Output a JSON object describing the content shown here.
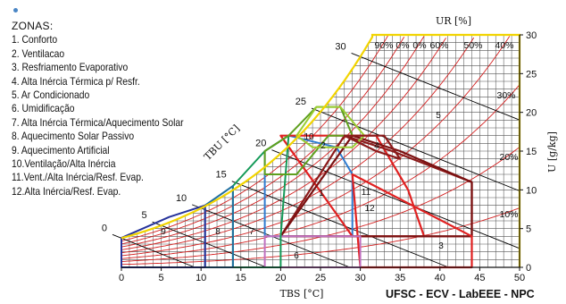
{
  "legend": {
    "heading": "ZONAS:",
    "items": [
      "1. Conforto",
      "2. Ventilacao",
      "3. Resfriamento Evaporativo",
      "4. Alta Inércia Térmica p/ Resfr.",
      "5. Ar Condicionado",
      "6. Umidificação",
      "7. Alta Inércia Térmica/Aquecimento Solar",
      "8. Aquecimento Solar Passivo",
      "9. Aquecimento Artificial",
      "10.Ventilação/Alta Inércia",
      "11.Vent./Alta Inércia/Resf. Evap.",
      "12.Alta Inércia/Resf. Evap."
    ]
  },
  "credit": "UFSC - ECV - LabEEE - NPC",
  "colors": {
    "saturation": "#f2d400",
    "grid": "#555555",
    "rh_curves": "#d42020",
    "comfort": "#2e7bd0",
    "ventilation": "#e02020",
    "evaporative": "#8b1a1a",
    "thermal_mass": "#7a1010",
    "heating_solar_mass": "#149a58",
    "passive_solar": "#1f6fa0",
    "artificial_heating": "#26339b",
    "vent_mass": "#5fa01e",
    "vent_mass_evap": "#9acd32",
    "humidification": "#c070c0",
    "wet_bulb": "#000000"
  },
  "chart_data": {
    "type": "psychrometric",
    "xlabel": "TBS [°C]",
    "ylabel": "U [g/kg]",
    "rh_label": "UR [%]",
    "wb_label": "TBU [°C]",
    "xlim": [
      0,
      50
    ],
    "ylim": [
      0,
      30
    ],
    "x_ticks": [
      "0",
      "5",
      "10",
      "15",
      "20",
      "25",
      "30",
      "35",
      "40",
      "45",
      "50"
    ],
    "y_ticks": [
      "0",
      "5",
      "10",
      "15",
      "20",
      "25",
      "30"
    ],
    "rh_curves": [
      10,
      20,
      30,
      40,
      50,
      60,
      70,
      80,
      90,
      100
    ],
    "rh_labels": [
      "90%",
      "0%",
      "0%",
      "60%",
      "50%",
      "40%",
      "30%",
      "20%",
      "10%"
    ],
    "wet_bulb_labels": [
      "0",
      "5",
      "10",
      "15",
      "20",
      "25",
      "30"
    ],
    "zone_numbers": [
      "1",
      "2",
      "3",
      "4",
      "5",
      "6",
      "7",
      "8",
      "9",
      "10",
      "11",
      "12"
    ],
    "zones": [
      {
        "zone": "1",
        "color": "comfort",
        "points": [
          [
            18,
            4
          ],
          [
            29,
            4
          ],
          [
            29,
            12
          ],
          [
            27,
            15.5
          ],
          [
            21,
            17
          ],
          [
            18,
            15
          ]
        ]
      },
      {
        "zone": "2",
        "color": "ventilation",
        "points": [
          [
            20,
            17
          ],
          [
            25,
            17
          ],
          [
            32,
            17
          ],
          [
            36,
            10
          ],
          [
            38,
            4
          ],
          [
            29,
            4
          ]
        ]
      },
      {
        "zone": "3",
        "color": "evaporative",
        "points": [
          [
            20,
            4
          ],
          [
            44,
            4
          ],
          [
            44,
            11
          ],
          [
            34,
            15
          ],
          [
            28,
            17
          ],
          [
            20,
            4
          ]
        ]
      },
      {
        "zone": "4",
        "color": "thermal_mass",
        "points": [
          [
            20,
            4
          ],
          [
            44,
            4
          ],
          [
            44,
            11
          ],
          [
            35,
            15
          ],
          [
            29,
            17
          ]
        ]
      },
      {
        "zone": "5",
        "color": "ventilation",
        "points": [
          [
            29,
            12
          ],
          [
            44,
            4
          ],
          [
            44,
            0
          ],
          [
            30,
            0
          ]
        ]
      },
      {
        "zone": "6",
        "color": "humidification",
        "points": [
          [
            18,
            0
          ],
          [
            30,
            0
          ],
          [
            30,
            4
          ],
          [
            18,
            4
          ]
        ]
      },
      {
        "zone": "7",
        "color": "heating_solar_mass",
        "points": [
          [
            14,
            0
          ],
          [
            20,
            0
          ],
          [
            20,
            4
          ],
          [
            21,
            17
          ],
          [
            18,
            15
          ],
          [
            14,
            10.5
          ]
        ]
      },
      {
        "zone": "8",
        "color": "passive_solar",
        "points": [
          [
            10.5,
            0
          ],
          [
            14,
            0
          ],
          [
            14,
            10.5
          ],
          [
            10.5,
            8
          ]
        ]
      },
      {
        "zone": "9",
        "color": "artificial_heating",
        "points": [
          [
            0,
            0
          ],
          [
            10.5,
            0
          ],
          [
            10.5,
            8
          ],
          [
            6,
            6.5
          ],
          [
            0,
            3.8
          ]
        ]
      },
      {
        "zone": "10",
        "color": "vent_mass",
        "points": [
          [
            18,
            15
          ],
          [
            21,
            17
          ],
          [
            24.5,
            20.7
          ],
          [
            27.5,
            20.7
          ],
          [
            29,
            17
          ],
          [
            26,
            17
          ],
          [
            22,
            12
          ],
          [
            18,
            12
          ]
        ]
      },
      {
        "zone": "11",
        "color": "vent_mass_evap",
        "points": [
          [
            24.5,
            20.7
          ],
          [
            27.5,
            20.7
          ],
          [
            30.5,
            17
          ],
          [
            29,
            15.5
          ],
          [
            24,
            15.5
          ],
          [
            22,
            17
          ]
        ]
      },
      {
        "zone": "12",
        "color": "evaporative",
        "points": [
          [
            28,
            17
          ],
          [
            32,
            15
          ],
          [
            35,
            14
          ],
          [
            33,
            17
          ]
        ]
      }
    ]
  }
}
